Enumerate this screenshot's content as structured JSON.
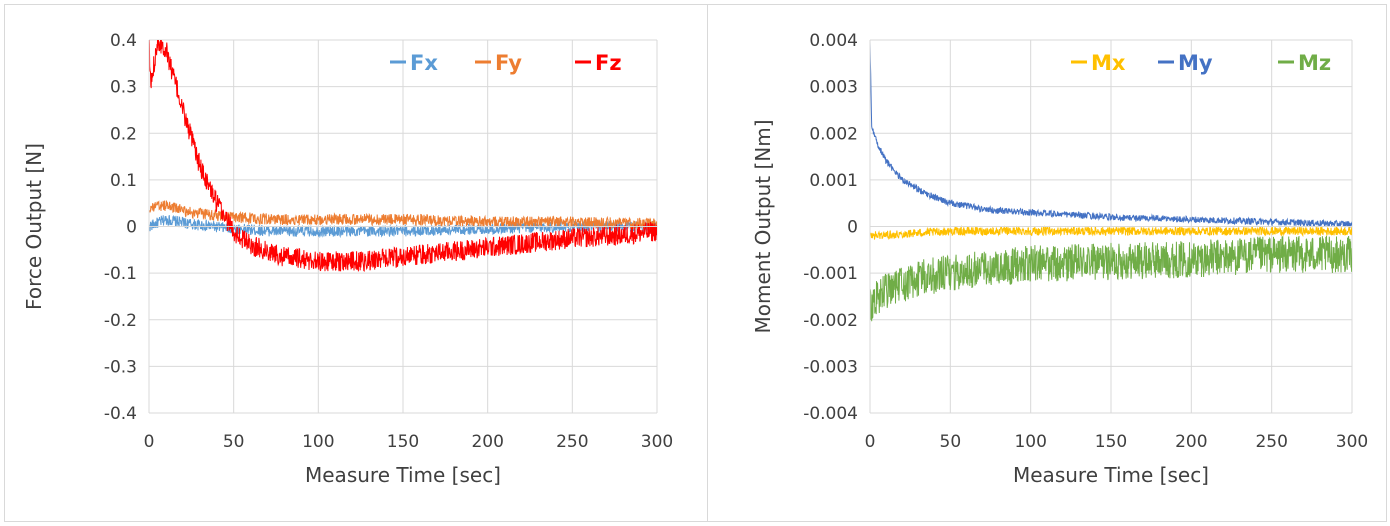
{
  "chart_data": [
    {
      "type": "line",
      "xlabel": "Measure Time [sec]",
      "ylabel": "Force Output [N]",
      "xlim": [
        0,
        300
      ],
      "ylim": [
        -0.4,
        0.4
      ],
      "xticks": [
        "0",
        "50",
        "100",
        "150",
        "200",
        "250",
        "300"
      ],
      "yticks": [
        "0.4",
        "0.3",
        "0.2",
        "0.1",
        "0",
        "-0.1",
        "-0.2",
        "-0.3",
        "-0.4"
      ],
      "grid": true,
      "legend_position": "top-right",
      "series": [
        {
          "name": "Fx",
          "color": "#5b9bd5",
          "x": [
            0,
            10,
            25,
            50,
            75,
            100,
            150,
            200,
            250,
            300
          ],
          "y": [
            0.0,
            0.015,
            0.005,
            -0.005,
            -0.01,
            -0.01,
            -0.01,
            -0.005,
            0.0,
            0.0
          ]
        },
        {
          "name": "Fy",
          "color": "#ed7d31",
          "x": [
            0,
            10,
            25,
            50,
            75,
            100,
            150,
            200,
            250,
            300
          ],
          "y": [
            0.04,
            0.045,
            0.03,
            0.02,
            0.015,
            0.015,
            0.015,
            0.01,
            0.01,
            0.005
          ]
        },
        {
          "name": "Fz",
          "color": "#ff0000",
          "x": [
            0,
            1,
            5,
            10,
            20,
            30,
            40,
            50,
            60,
            80,
            100,
            125,
            150,
            175,
            200,
            225,
            250,
            275,
            300
          ],
          "y": [
            0.4,
            0.3,
            0.4,
            0.38,
            0.25,
            0.13,
            0.05,
            -0.01,
            -0.04,
            -0.065,
            -0.075,
            -0.075,
            -0.065,
            -0.055,
            -0.045,
            -0.035,
            -0.025,
            -0.02,
            -0.01
          ]
        }
      ]
    },
    {
      "type": "line",
      "xlabel": "Measure Time [sec]",
      "ylabel": "Moment Output [Nm]",
      "xlim": [
        0,
        300
      ],
      "ylim": [
        -0.004,
        0.004
      ],
      "xticks": [
        "0",
        "50",
        "100",
        "150",
        "200",
        "250",
        "300"
      ],
      "yticks": [
        "0.004",
        "0.003",
        "0.002",
        "0.001",
        "0",
        "-0.001",
        "-0.002",
        "-0.003",
        "-0.004"
      ],
      "grid": true,
      "legend_position": "top-right",
      "series": [
        {
          "name": "Mx",
          "color": "#ffc000",
          "x": [
            0,
            25,
            50,
            100,
            150,
            200,
            250,
            300
          ],
          "y": [
            -0.0002,
            -0.00015,
            -0.0001,
            -0.0001,
            -0.0001,
            -0.0001,
            -0.0001,
            -0.0001
          ]
        },
        {
          "name": "My",
          "color": "#4472c4",
          "x": [
            0,
            1,
            3,
            10,
            20,
            35,
            50,
            75,
            100,
            150,
            200,
            250,
            300
          ],
          "y": [
            0.004,
            0.0022,
            0.0019,
            0.0014,
            0.001,
            0.0007,
            0.0005,
            0.00035,
            0.0003,
            0.0002,
            0.00015,
            0.0001,
            5e-05
          ]
        },
        {
          "name": "Mz",
          "color": "#70ad47",
          "x": [
            0,
            5,
            15,
            30,
            50,
            75,
            100,
            150,
            200,
            250,
            300
          ],
          "y": [
            -0.0017,
            -0.0015,
            -0.0013,
            -0.0011,
            -0.001,
            -0.0009,
            -0.0008,
            -0.00075,
            -0.0007,
            -0.0006,
            -0.0006
          ]
        }
      ]
    }
  ]
}
